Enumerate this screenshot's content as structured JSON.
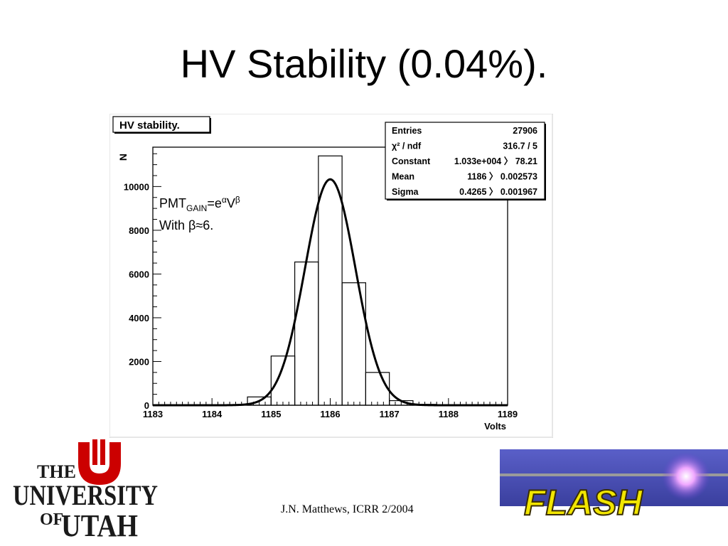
{
  "slide": {
    "title": "HV Stability (0.04%).",
    "footer": "J.N. Matthews, ICRR 2/2004"
  },
  "logos": {
    "left": {
      "icon": "university-of-utah-logo",
      "lines": [
        "THE",
        "UNIVERSITY",
        "OF",
        "UTAH"
      ],
      "color": "#cc0000"
    },
    "right": {
      "icon": "flash-logo",
      "text": "FLASH",
      "bg_color": "#4a4fb8",
      "text_color": "#f2e600"
    }
  },
  "chart_data": {
    "type": "histogram",
    "title": "HV stability.",
    "xlabel": "Volts",
    "ylabel": "N",
    "xlim": [
      1183,
      1189
    ],
    "ylim": [
      0,
      11800
    ],
    "x_ticks": [
      1183,
      1184,
      1185,
      1186,
      1187,
      1188,
      1189
    ],
    "x_tick_labels": [
      "1183",
      "1184",
      "1185",
      "1186",
      "1187",
      "1188",
      "1189"
    ],
    "y_ticks": [
      0,
      2000,
      4000,
      6000,
      8000,
      10000
    ],
    "y_tick_labels": [
      "0",
      "2000",
      "4000",
      "6000",
      "8000",
      "10000"
    ],
    "bins": [
      {
        "lo": 1184.6,
        "hi": 1185.0,
        "count": 380
      },
      {
        "lo": 1185.0,
        "hi": 1185.4,
        "count": 2250
      },
      {
        "lo": 1185.4,
        "hi": 1185.8,
        "count": 6550
      },
      {
        "lo": 1185.8,
        "hi": 1186.2,
        "count": 11400
      },
      {
        "lo": 1186.2,
        "hi": 1186.6,
        "count": 5600
      },
      {
        "lo": 1186.6,
        "hi": 1187.0,
        "count": 1500
      },
      {
        "lo": 1187.0,
        "hi": 1187.4,
        "count": 210
      },
      {
        "lo": 1187.4,
        "hi": 1187.8,
        "count": 40
      }
    ],
    "fit": {
      "function": "gaussian",
      "constant": 10330,
      "mean": 1186.0,
      "sigma": 0.4265
    },
    "stats_box": {
      "rows": [
        {
          "label": "Entries",
          "value": "27906"
        },
        {
          "label": "χ² / ndf",
          "value": "316.7 / 5"
        },
        {
          "label": "Constant",
          "value": "1.033e+004 〉 78.21"
        },
        {
          "label": "Mean",
          "value": "1186 〉 0.002573"
        },
        {
          "label": "Sigma",
          "value": "0.4265 〉 0.001967"
        }
      ],
      "placement": "top-right"
    },
    "annotation": {
      "line1_base": "PMT",
      "line1_sub": "GAIN",
      "line1_mid": "=e",
      "line1_sup1": "α",
      "line1_v": "V",
      "line1_sup2": "β",
      "line2": "With β≈6."
    },
    "grid": false,
    "legend": "none"
  }
}
